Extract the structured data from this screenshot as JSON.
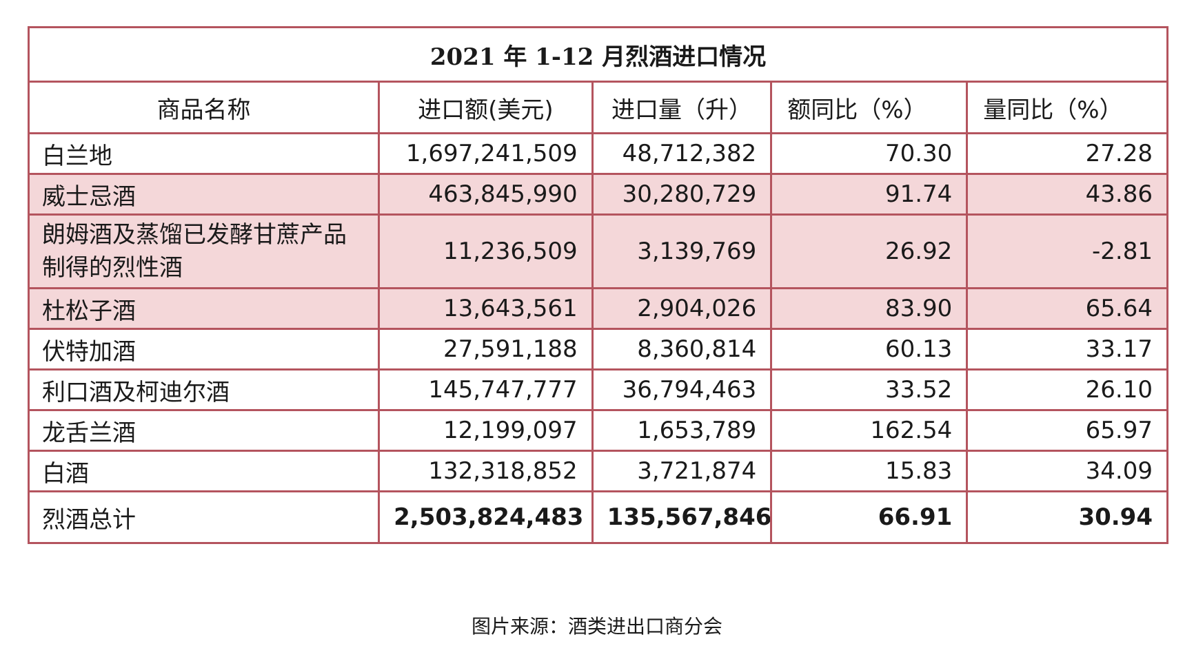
{
  "table": {
    "title": "2021 年 1-12 月烈酒进口情况",
    "headers": [
      "商品名称",
      "进口额(美元)",
      "进口量（升）",
      "额同比（%）",
      "量同比（%）"
    ],
    "rows": [
      {
        "name": "白兰地",
        "amount": "1,697,241,509",
        "volume": "48,712,382",
        "amount_yoy": "70.30",
        "volume_yoy": "27.28"
      },
      {
        "name": "威士忌酒",
        "amount": "463,845,990",
        "volume": "30,280,729",
        "amount_yoy": "91.74",
        "volume_yoy": "43.86"
      },
      {
        "name": "朗姆酒及蒸馏已发酵甘蔗产品制得的烈性酒",
        "amount": "11,236,509",
        "volume": "3,139,769",
        "amount_yoy": "26.92",
        "volume_yoy": "-2.81"
      },
      {
        "name": "杜松子酒",
        "amount": "13,643,561",
        "volume": "2,904,026",
        "amount_yoy": "83.90",
        "volume_yoy": "65.64"
      },
      {
        "name": "伏特加酒",
        "amount": "27,591,188",
        "volume": "8,360,814",
        "amount_yoy": "60.13",
        "volume_yoy": "33.17"
      },
      {
        "name": "利口酒及柯迪尔酒",
        "amount": "145,747,777",
        "volume": "36,794,463",
        "amount_yoy": "33.52",
        "volume_yoy": "26.10"
      },
      {
        "name": "龙舌兰酒",
        "amount": "12,199,097",
        "volume": "1,653,789",
        "amount_yoy": "162.54",
        "volume_yoy": "65.97"
      },
      {
        "name": "白酒",
        "amount": "132,318,852",
        "volume": "3,721,874",
        "amount_yoy": "15.83",
        "volume_yoy": "34.09"
      },
      {
        "name": "烈酒总计",
        "amount": "2,503,824,483",
        "volume": "135,567,846",
        "amount_yoy": "66.91",
        "volume_yoy": "30.94"
      }
    ],
    "highlight_color": "#f4d7d9",
    "border_color": "#b4545e"
  },
  "caption": "图片来源：酒类进出口商分会"
}
